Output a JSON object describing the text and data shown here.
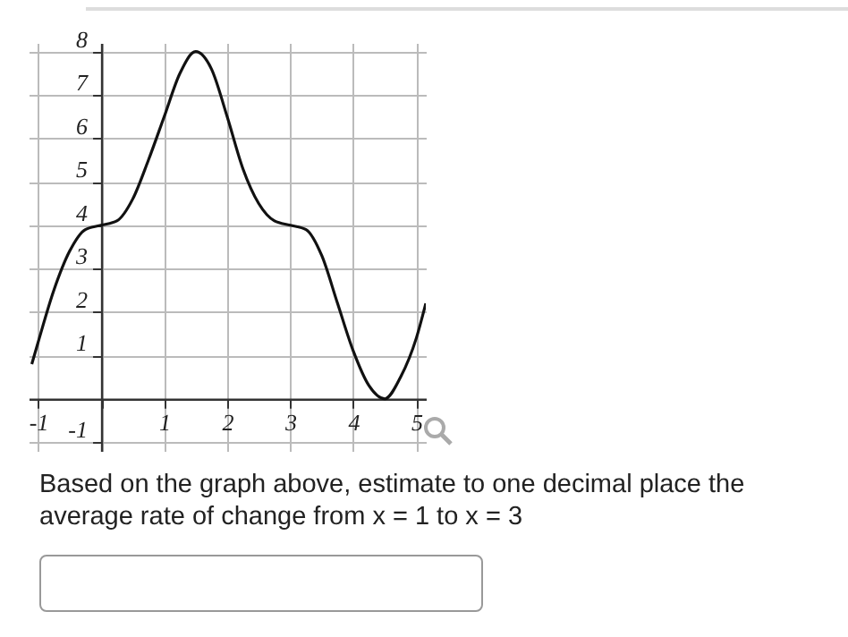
{
  "chart_data": {
    "type": "line",
    "annotations": [
      "Based on the graph above, estimate to one decimal place the average rate of change from x = 1 to x = 3"
    ],
    "x": [
      -1.1,
      -1,
      -0.75,
      -0.5,
      -0.25,
      0,
      0.25,
      0.5,
      0.75,
      1,
      1.25,
      1.5,
      1.75,
      2,
      2.25,
      2.5,
      2.75,
      3,
      3.25,
      3.5,
      3.75,
      4,
      4.25,
      4.5,
      4.75,
      5,
      5.15
    ],
    "series": [
      {
        "color": "#111111",
        "values": [
          0.8,
          1.3,
          2.5,
          3.4,
          3.9,
          4,
          4.1,
          4.6,
          5.5,
          6.5,
          7.5,
          8,
          7.6,
          6.5,
          5.3,
          4.5,
          4.1,
          4,
          3.9,
          3.3,
          2.2,
          1.1,
          0.3,
          0,
          0.5,
          1.4,
          2.2
        ]
      }
    ],
    "xlim": [
      -1.15,
      5.15
    ],
    "ylim": [
      -1.2,
      8.2
    ],
    "xticks": [
      -1,
      {
        "value": 0,
        "label": null
      },
      1,
      2,
      3,
      4,
      5
    ],
    "yticks": [
      -1,
      {
        "value": 0,
        "label": null
      },
      1,
      2,
      3,
      4,
      5,
      6,
      7,
      8
    ],
    "grid": true,
    "marker": "none",
    "line_style": "solid"
  }
}
